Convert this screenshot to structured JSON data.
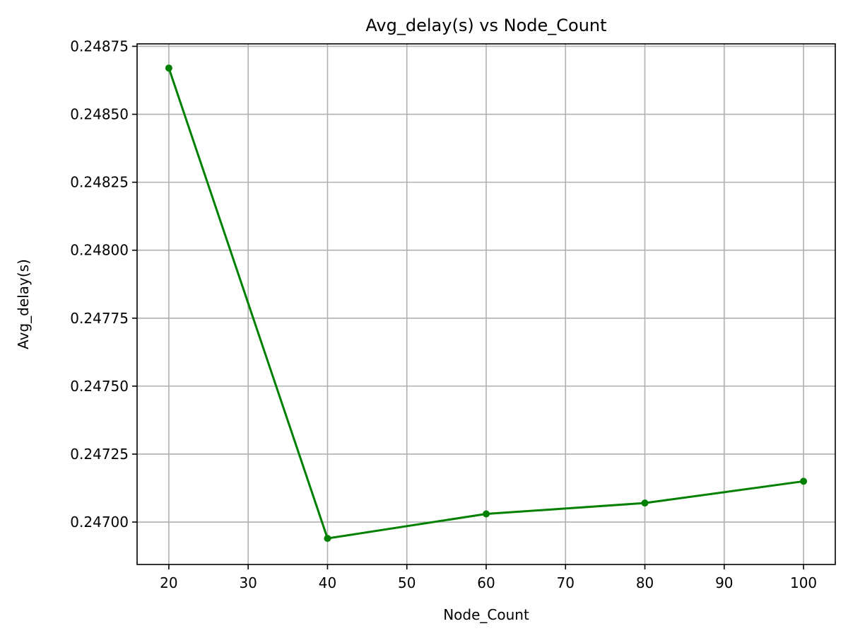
{
  "chart_data": {
    "type": "line",
    "title": "Avg_delay(s) vs Node_Count",
    "xlabel": "Node_Count",
    "ylabel": "Avg_delay(s)",
    "x": [
      20,
      40,
      60,
      80,
      100
    ],
    "series": [
      {
        "values": [
          0.24867,
          0.24694,
          0.24703,
          0.24707,
          0.24715
        ]
      }
    ],
    "xlim": [
      16,
      104
    ],
    "ylim": [
      0.246844,
      0.248759
    ],
    "xticks": [
      20,
      30,
      40,
      50,
      60,
      70,
      80,
      90,
      100
    ],
    "xtick_labels": [
      "20",
      "30",
      "40",
      "50",
      "60",
      "70",
      "80",
      "90",
      "100"
    ],
    "yticks": [
      0.247,
      0.24725,
      0.2475,
      0.24775,
      0.248,
      0.24825,
      0.2485,
      0.24875
    ],
    "ytick_labels": [
      "0.24700",
      "0.24725",
      "0.24750",
      "0.24775",
      "0.24800",
      "0.24825",
      "0.24850",
      "0.24875"
    ],
    "grid": true,
    "markers": true,
    "colors": {
      "line": "#008000",
      "grid": "#b0b0b0",
      "axes": "#000000"
    }
  }
}
